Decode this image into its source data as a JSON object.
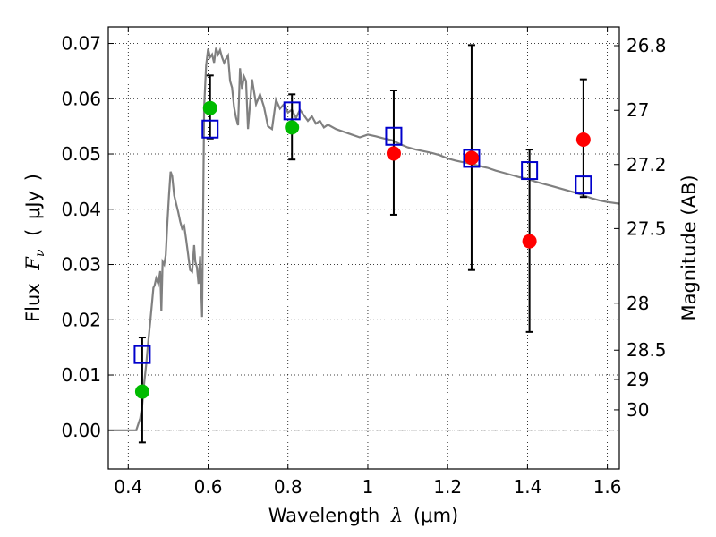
{
  "chart_data": {
    "type": "scatter",
    "xlabel": {
      "prefix": "Wavelength",
      "symbol": "λ",
      "open": "(",
      "unit": "μm",
      "close": ")"
    },
    "ylabel": {
      "prefix": "Flux",
      "symbol": "F",
      "subscript": "ν",
      "open": "(",
      "unit": "μJy",
      "close": ")"
    },
    "y2label": "Magnitude (AB)",
    "xlim": [
      0.35,
      1.63
    ],
    "ylim": [
      -0.007,
      0.073
    ],
    "x_ticks": [
      0.4,
      0.6,
      0.8,
      1.0,
      1.2,
      1.4,
      1.6
    ],
    "x_tick_labels": [
      "0.4",
      "0.6",
      "0.8",
      "1",
      "1.2",
      "1.4",
      "1.6"
    ],
    "y_ticks": [
      0.0,
      0.01,
      0.02,
      0.03,
      0.04,
      0.05,
      0.06,
      0.07
    ],
    "y_tick_labels": [
      "0.00",
      "0.01",
      "0.02",
      "0.03",
      "0.04",
      "0.05",
      "0.06",
      "0.07"
    ],
    "mag_ticks": [
      {
        "label": "26.8",
        "flux": 0.0696
      },
      {
        "label": "27",
        "flux": 0.0579
      },
      {
        "label": "27.2",
        "flux": 0.0481
      },
      {
        "label": "27.5",
        "flux": 0.0365
      },
      {
        "label": "28",
        "flux": 0.023
      },
      {
        "label": "28.5",
        "flux": 0.0145
      },
      {
        "label": "29",
        "flux": 0.0092
      },
      {
        "label": "30",
        "flux": 0.0037
      }
    ],
    "grid": true,
    "model_spectrum": {
      "color": "#808080",
      "x": [
        0.35,
        0.42,
        0.43,
        0.435,
        0.44,
        0.445,
        0.45,
        0.455,
        0.46,
        0.463,
        0.466,
        0.47,
        0.475,
        0.48,
        0.483,
        0.486,
        0.49,
        0.494,
        0.498,
        0.502,
        0.506,
        0.51,
        0.515,
        0.52,
        0.525,
        0.53,
        0.535,
        0.54,
        0.545,
        0.55,
        0.555,
        0.56,
        0.565,
        0.568,
        0.572,
        0.576,
        0.58,
        0.585,
        0.59,
        0.595,
        0.6,
        0.605,
        0.61,
        0.615,
        0.62,
        0.625,
        0.63,
        0.635,
        0.64,
        0.645,
        0.65,
        0.655,
        0.66,
        0.665,
        0.67,
        0.675,
        0.68,
        0.685,
        0.69,
        0.695,
        0.7,
        0.71,
        0.72,
        0.73,
        0.74,
        0.75,
        0.76,
        0.77,
        0.78,
        0.79,
        0.8,
        0.81,
        0.82,
        0.83,
        0.84,
        0.85,
        0.86,
        0.87,
        0.88,
        0.89,
        0.9,
        0.92,
        0.94,
        0.96,
        0.98,
        1.0,
        1.02,
        1.04,
        1.06,
        1.08,
        1.1,
        1.12,
        1.14,
        1.16,
        1.18,
        1.2,
        1.22,
        1.24,
        1.26,
        1.28,
        1.3,
        1.32,
        1.34,
        1.36,
        1.38,
        1.4,
        1.42,
        1.44,
        1.46,
        1.48,
        1.5,
        1.52,
        1.54,
        1.56,
        1.58,
        1.6,
        1.63
      ],
      "y": [
        0.0,
        0.0,
        0.0022,
        0.0045,
        0.0085,
        0.012,
        0.016,
        0.0195,
        0.0235,
        0.0258,
        0.0262,
        0.0275,
        0.0265,
        0.0288,
        0.0215,
        0.0305,
        0.03,
        0.0317,
        0.0375,
        0.0425,
        0.0468,
        0.046,
        0.0425,
        0.041,
        0.0395,
        0.0378,
        0.0365,
        0.037,
        0.0345,
        0.0318,
        0.029,
        0.0287,
        0.0335,
        0.0305,
        0.0295,
        0.0265,
        0.0315,
        0.0205,
        0.0585,
        0.066,
        0.069,
        0.0675,
        0.068,
        0.0665,
        0.0692,
        0.068,
        0.0688,
        0.0675,
        0.0665,
        0.0672,
        0.0678,
        0.0632,
        0.062,
        0.0585,
        0.0565,
        0.0552,
        0.0655,
        0.0618,
        0.064,
        0.0632,
        0.0545,
        0.0635,
        0.059,
        0.0608,
        0.0585,
        0.055,
        0.0545,
        0.0598,
        0.0582,
        0.059,
        0.0575,
        0.058,
        0.0565,
        0.058,
        0.057,
        0.056,
        0.0568,
        0.0555,
        0.056,
        0.0548,
        0.0553,
        0.0545,
        0.054,
        0.0535,
        0.053,
        0.0535,
        0.0532,
        0.0528,
        0.0525,
        0.0518,
        0.0512,
        0.0508,
        0.0505,
        0.0502,
        0.0498,
        0.0492,
        0.0488,
        0.0485,
        0.0482,
        0.0478,
        0.0475,
        0.047,
        0.0466,
        0.0462,
        0.0458,
        0.0455,
        0.045,
        0.0446,
        0.0442,
        0.0438,
        0.0434,
        0.043,
        0.0425,
        0.042,
        0.0416,
        0.0413,
        0.041
      ]
    },
    "error_bars": [
      {
        "x": 0.435,
        "low": -0.0022,
        "high": 0.0168
      },
      {
        "x": 0.605,
        "low": 0.0528,
        "high": 0.0642
      },
      {
        "x": 0.81,
        "low": 0.049,
        "high": 0.0608
      },
      {
        "x": 1.065,
        "low": 0.039,
        "high": 0.0615
      },
      {
        "x": 1.26,
        "low": 0.029,
        "high": 0.0697
      },
      {
        "x": 1.405,
        "low": 0.0178,
        "high": 0.0508
      },
      {
        "x": 1.54,
        "low": 0.0422,
        "high": 0.0635
      }
    ],
    "series": [
      {
        "marker": "open-square",
        "color": "#0000cc",
        "x": [
          0.435,
          0.605,
          0.81,
          1.065,
          1.26,
          1.405,
          1.54
        ],
        "y": [
          0.0137,
          0.0545,
          0.0578,
          0.0532,
          0.0492,
          0.047,
          0.0444
        ]
      },
      {
        "marker": "filled-circle",
        "color": "#00bb00",
        "x": [
          0.435,
          0.605,
          0.81
        ],
        "y": [
          0.007,
          0.0583,
          0.0548
        ]
      },
      {
        "marker": "filled-circle",
        "color": "#ff0000",
        "x": [
          1.065,
          1.26,
          1.405,
          1.54
        ],
        "y": [
          0.0501,
          0.0493,
          0.0342,
          0.0526
        ]
      }
    ]
  }
}
